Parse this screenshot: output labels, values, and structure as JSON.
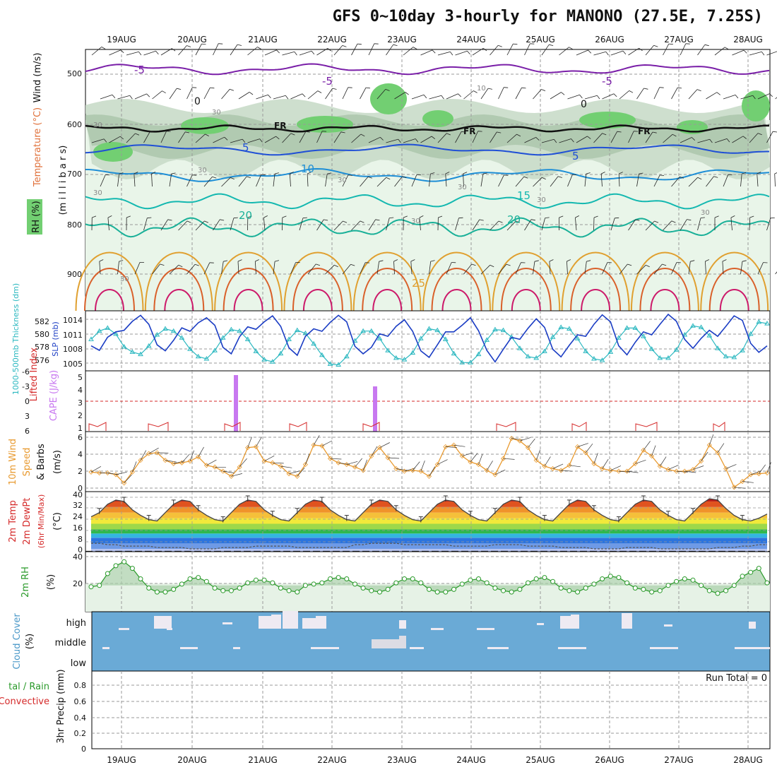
{
  "title": "GFS 0~10day 3-hourly for MANONO (27.5E, 7.25S)",
  "dates": [
    "19AUG",
    "20AUG",
    "21AUG",
    "22AUG",
    "23AUG",
    "24AUG",
    "25AUG",
    "26AUG",
    "27AUG",
    "28AUG"
  ],
  "colors": {
    "temp_minus5": "#7a1fa8",
    "temp_5": "#1f4fd6",
    "temp_10": "#1e8ed6",
    "temp_15": "#14b8b0",
    "temp_20": "#19b098",
    "temp_25": "#e0a030",
    "temp_30": "#d9602a",
    "temp_35": "#cc1a6a",
    "rh_fill": "#72cf72",
    "slp": "#1b3dc4",
    "thickness": "#2cb8c0",
    "cape": "#c878f0",
    "lifted": "#d52a2a",
    "wind": "#e89a30",
    "rh2m": "#2a9a2a",
    "cloud": "#6aaad6",
    "precip": "#d52a2a"
  },
  "panels": {
    "upper": {
      "ylabel_mb": "(m i l l i b a r s)",
      "ylabel_wind": "Wind (m/s)",
      "ylabel_temp": "Temperature (°C)",
      "ylabel_rh": "RH (%)",
      "levels": [
        "500",
        "600",
        "700",
        "800",
        "900"
      ],
      "contour_labels": [
        "-5",
        "-5",
        "-5",
        "5",
        "5",
        "10",
        "15",
        "20",
        "20",
        "25",
        "0",
        "0",
        "FR",
        "FR",
        "FR",
        "10",
        "30",
        "30",
        "30",
        "30",
        "30",
        "30",
        "30",
        "30",
        "30",
        "30"
      ]
    },
    "slp": {
      "label_thick": "1000-500mb Thickness (dm)",
      "label_slp": "SLP (mb)",
      "thick_ticks": [
        "582",
        "580",
        "578",
        "576"
      ],
      "slp_ticks": [
        "1014",
        "1011",
        "1008",
        "1005"
      ]
    },
    "li": {
      "label_li": "Lifted Index",
      "label_cape": "CAPE (J/kg)",
      "li_ticks": [
        "-6",
        "-3",
        "0",
        "3",
        "6"
      ],
      "cape_ticks": [
        "5",
        "4",
        "3",
        "2",
        "1"
      ]
    },
    "wind": {
      "label1": "10m Wind",
      "label2": "Speed",
      "label3": "& Barbs",
      "unit": "(m/s)",
      "ticks": [
        "6",
        "4",
        "2",
        "0"
      ]
    },
    "temp": {
      "label1": "2m Temp",
      "label2": "2m DewPt",
      "label3": "(6hr Min/Max)",
      "unit": "(°C)",
      "ticks": [
        "40",
        "32",
        "24",
        "16",
        "8",
        "0"
      ]
    },
    "rh": {
      "label": "2m RH",
      "unit": "(%)",
      "ticks": [
        "40",
        "20"
      ]
    },
    "cloud": {
      "label": "Cloud Cover",
      "unit": "(%)",
      "levels": [
        "high",
        "middle",
        "low"
      ]
    },
    "precip": {
      "label1": "tal / Rain",
      "label2": "Convective",
      "label3": "3hr Precip (mm)",
      "run_total": "Run Total = 0",
      "ticks": [
        "0.8",
        "0.6",
        "0.4",
        "0.2",
        "0"
      ]
    }
  },
  "chart_data": [
    {
      "type": "line",
      "name": "SLP / Thickness",
      "x_unit": "3-hourly steps",
      "series": [
        {
          "name": "SLP (mb)",
          "values": [
            1008.5,
            1007.6,
            1010.2,
            1011.3,
            1011.6,
            1013.4,
            1014.6,
            1012.8,
            1008.7,
            1007.5,
            1009.6,
            1012.1,
            1011.4,
            1013.1,
            1014.1,
            1012.6,
            1008.2,
            1006.9,
            1010.3,
            1012.3,
            1011.8,
            1013.3,
            1014.5,
            1012.4,
            1008.1,
            1006.6,
            1010.4,
            1011.9,
            1011.4,
            1013.2,
            1014.6,
            1013.3,
            1008.4,
            1006.9,
            1008.2,
            1010.9,
            1010.4,
            1012.4,
            1013.7,
            1011.4,
            1007.5,
            1006.2,
            1008.7,
            1011.3,
            1011.3,
            1012.6,
            1014.1,
            1011.5,
            1007.6,
            1005.3,
            1007.8,
            1010.2,
            1009.8,
            1012.0,
            1013.9,
            1012.2,
            1007.8,
            1006.3,
            1008.6,
            1010.7,
            1010.4,
            1012.8,
            1014.7,
            1013.3,
            1008.5,
            1006.7,
            1009.2,
            1011.3,
            1010.7,
            1012.8,
            1014.8,
            1013.4,
            1009.8,
            1008.0,
            1010.0,
            1011.6,
            1010.4,
            1012.4,
            1014.5,
            1013.6,
            1009.0,
            1007.2,
            1008.5
          ]
        },
        {
          "name": "Thickness (dm)",
          "values": [
            579.2,
            580.3,
            580.7,
            579.9,
            578.2,
            577.5,
            577.2,
            578.3,
            579.8,
            580.6,
            580.3,
            579.4,
            577.9,
            576.9,
            576.6,
            577.7,
            579.4,
            580.5,
            580.3,
            579.2,
            577.6,
            576.5,
            576.2,
            577.3,
            579.2,
            580.4,
            580.0,
            578.6,
            577.1,
            575.9,
            575.8,
            576.9,
            579.0,
            580.3,
            580.3,
            579.3,
            577.7,
            576.7,
            576.5,
            577.4,
            579.3,
            580.6,
            580.4,
            579.2,
            577.3,
            576.1,
            576.1,
            577.2,
            579.1,
            580.5,
            580.4,
            579.5,
            578.0,
            576.9,
            576.7,
            577.6,
            579.5,
            580.8,
            580.6,
            579.3,
            577.6,
            576.6,
            576.4,
            577.5,
            579.4,
            580.7,
            580.7,
            579.6,
            577.9,
            576.7,
            576.7,
            577.8,
            579.8,
            581.0,
            580.8,
            579.7,
            578.0,
            576.9,
            576.8,
            577.7,
            579.9,
            581.5,
            581.3
          ]
        }
      ],
      "ylim_slp": [
        1003.5,
        1015.5
      ],
      "ylim_thickness": [
        575,
        583
      ]
    },
    {
      "type": "bar",
      "name": "CAPE",
      "categories": [
        "20AUG 15Z",
        "22AUG 15Z"
      ],
      "values": [
        5,
        4
      ],
      "ylabel": "CAPE (J/kg)"
    },
    {
      "type": "line",
      "name": "10m Wind Speed",
      "values": [
        1.9,
        1.8,
        1.8,
        1.6,
        0.6,
        1.9,
        3.3,
        4.1,
        4.2,
        3.3,
        2.9,
        3.0,
        3.2,
        3.7,
        2.7,
        2.5,
        2.0,
        1.4,
        2.5,
        4.8,
        4.9,
        3.2,
        3.0,
        2.6,
        1.7,
        1.4,
        2.8,
        5.1,
        5.0,
        3.5,
        3.0,
        2.8,
        2.5,
        2.1,
        3.8,
        4.8,
        3.6,
        2.3,
        2.0,
        2.1,
        2.0,
        1.4,
        2.8,
        4.9,
        5.1,
        3.8,
        3.1,
        2.8,
        2.1,
        1.6,
        3.5,
        5.9,
        5.6,
        4.8,
        3.3,
        2.6,
        2.3,
        2.1,
        2.7,
        4.9,
        4.2,
        2.9,
        2.3,
        2.1,
        2.0,
        2.0,
        2.9,
        4.5,
        3.8,
        2.6,
        2.2,
        2.0,
        2.0,
        2.2,
        3.2,
        5.1,
        4.2,
        2.3,
        0.1,
        0.8,
        1.6,
        1.7,
        1.8
      ],
      "ylim": [
        0,
        6.2
      ]
    },
    {
      "type": "line",
      "name": "2m Temp",
      "values": [
        25,
        28,
        34,
        37,
        36,
        30,
        26,
        23,
        22,
        28,
        34,
        37,
        36,
        30,
        26,
        23,
        22,
        28,
        34,
        37,
        36,
        30,
        26,
        23,
        22,
        28,
        34,
        37,
        36,
        30,
        26,
        23,
        22,
        28,
        34,
        37,
        36,
        30,
        26,
        23,
        22,
        28,
        34,
        37,
        36,
        30,
        26,
        23,
        22,
        28,
        34,
        37,
        36,
        30,
        26,
        23,
        22,
        28,
        34,
        37,
        36,
        30,
        26,
        23,
        22,
        28,
        34,
        37,
        36,
        30,
        26,
        23,
        22,
        28,
        34,
        38,
        37,
        31,
        26,
        23,
        22,
        24,
        27
      ],
      "dewpoint": [
        6,
        6,
        5,
        5,
        4,
        4,
        4,
        4,
        3,
        3,
        3,
        3,
        2,
        2,
        2,
        2,
        3,
        3,
        3,
        3,
        4,
        4,
        4,
        4,
        4,
        3,
        3,
        3,
        3,
        3,
        3,
        3,
        5,
        5,
        6,
        6,
        6,
        6,
        5,
        5,
        5,
        5,
        5,
        5,
        4,
        4,
        4,
        4,
        4,
        5,
        5,
        5,
        5,
        4,
        4,
        4,
        4,
        3,
        3,
        3,
        3,
        2,
        2,
        2,
        2,
        3,
        3,
        3,
        3,
        2,
        2,
        2,
        2,
        2,
        2,
        2,
        3,
        3,
        3,
        4,
        4,
        5,
        5
      ],
      "ylim": [
        0,
        40
      ]
    },
    {
      "type": "line",
      "name": "2m RH",
      "values": [
        19,
        20,
        29,
        35,
        38,
        33,
        25,
        18,
        15,
        15,
        17,
        21,
        25,
        26,
        23,
        18,
        16,
        16,
        18,
        22,
        24,
        24,
        22,
        18,
        16,
        15,
        20,
        21,
        22,
        25,
        26,
        25,
        21,
        18,
        16,
        15,
        17,
        22,
        25,
        25,
        22,
        17,
        15,
        15,
        17,
        21,
        24,
        25,
        22,
        18,
        16,
        15,
        17,
        22,
        25,
        26,
        23,
        18,
        16,
        15,
        18,
        21,
        25,
        27,
        26,
        22,
        18,
        17,
        15,
        16,
        20,
        23,
        25,
        24,
        20,
        16,
        14,
        16,
        20,
        27,
        30,
        33,
        22
      ],
      "ylim": [
        0,
        43
      ]
    },
    {
      "type": "area",
      "name": "3hr Precip",
      "values": [
        0
      ],
      "ylim": [
        0,
        0.95
      ]
    }
  ]
}
